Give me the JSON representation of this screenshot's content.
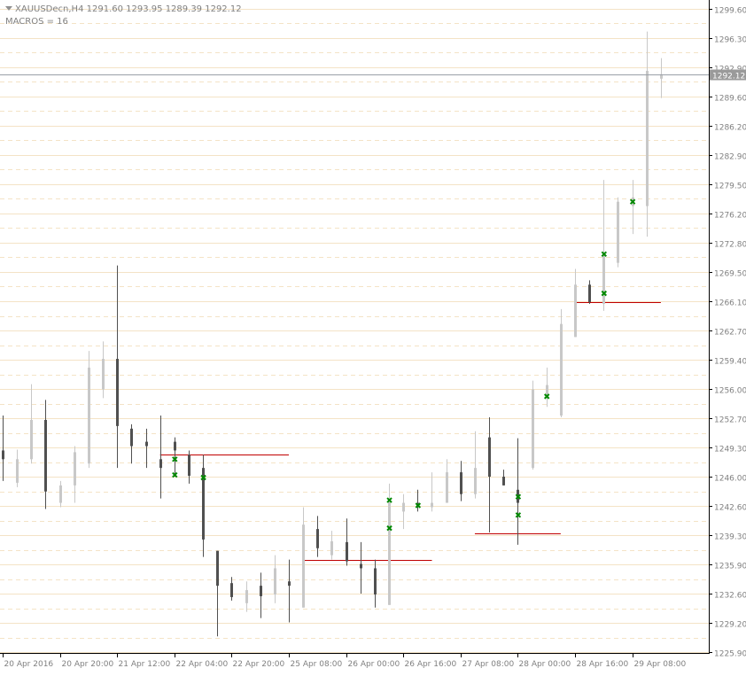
{
  "header": {
    "symbol": "XAUUSDecn,H4",
    "ohlc": "1291.60 1293.95 1289.39 1292.12",
    "indicator": "MACROS = 16"
  },
  "price_axis": {
    "labels": [
      "1299.60",
      "1296.30",
      "1292.90",
      "1289.60",
      "1286.20",
      "1282.90",
      "1279.50",
      "1276.20",
      "1272.80",
      "1269.50",
      "1266.10",
      "1262.70",
      "1259.40",
      "1256.00",
      "1252.70",
      "1249.30",
      "1246.00",
      "1242.60",
      "1239.30",
      "1235.90",
      "1232.60",
      "1229.20",
      "1225.90"
    ],
    "values": [
      1299.6,
      1296.3,
      1292.9,
      1289.6,
      1286.2,
      1282.9,
      1279.5,
      1276.2,
      1272.8,
      1269.5,
      1266.1,
      1262.7,
      1259.4,
      1256.0,
      1252.7,
      1249.3,
      1246.0,
      1242.6,
      1239.3,
      1235.9,
      1232.6,
      1229.2,
      1225.9
    ],
    "current_price_label": "1292.12",
    "current_price": 1292.12
  },
  "time_axis": {
    "labels": [
      "20 Apr 2016",
      "20 Apr 20:00",
      "21 Apr 12:00",
      "22 Apr 04:00",
      "22 Apr 20:00",
      "25 Apr 08:00",
      "26 Apr 00:00",
      "26 Apr 16:00",
      "27 Apr 08:00",
      "28 Apr 00:00",
      "28 Apr 16:00",
      "29 Apr 08:00"
    ],
    "bar_index": [
      0,
      4,
      8,
      12,
      16,
      20,
      24,
      28,
      32,
      36,
      40,
      44
    ]
  },
  "colors": {
    "up_bar": "#c8c8c8",
    "down_bar": "#505050",
    "grid": "#f4e3c6",
    "level_line": "#c00000",
    "marker": "#008800",
    "current_line": "#9aa0a8",
    "price_tag_bg": "#9a9a9a"
  },
  "chart_data": {
    "type": "ohlc",
    "timeframe": "H4",
    "bars": [
      {
        "o": 1249.0,
        "h": 1253.0,
        "l": 1245.5,
        "c": 1248.0
      },
      {
        "o": 1245.3,
        "h": 1249.1,
        "l": 1244.8,
        "c": 1248.0
      },
      {
        "o": 1248.0,
        "h": 1256.6,
        "l": 1247.5,
        "c": 1252.5
      },
      {
        "o": 1252.5,
        "h": 1254.8,
        "l": 1242.3,
        "c": 1244.3
      },
      {
        "o": 1243.0,
        "h": 1245.5,
        "l": 1242.5,
        "c": 1245.0
      },
      {
        "o": 1245.0,
        "h": 1249.5,
        "l": 1243.0,
        "c": 1248.8
      },
      {
        "o": 1247.5,
        "h": 1260.4,
        "l": 1247.0,
        "c": 1258.5
      },
      {
        "o": 1256.0,
        "h": 1261.5,
        "l": 1255.0,
        "c": 1259.5
      },
      {
        "o": 1259.5,
        "h": 1270.2,
        "l": 1247.0,
        "c": 1251.8
      },
      {
        "o": 1251.5,
        "h": 1252.0,
        "l": 1247.5,
        "c": 1249.5
      },
      {
        "o": 1250.0,
        "h": 1251.5,
        "l": 1247.0,
        "c": 1249.5
      },
      {
        "o": 1248.0,
        "h": 1253.0,
        "l": 1243.5,
        "c": 1247.0
      },
      {
        "o": 1250.0,
        "h": 1250.5,
        "l": 1246.0,
        "c": 1249.0
      },
      {
        "o": 1248.5,
        "h": 1249.0,
        "l": 1245.2,
        "c": 1246.1
      },
      {
        "o": 1247.0,
        "h": 1248.5,
        "l": 1236.8,
        "c": 1238.8
      },
      {
        "o": 1237.5,
        "h": 1237.5,
        "l": 1227.7,
        "c": 1233.5
      },
      {
        "o": 1233.8,
        "h": 1234.5,
        "l": 1231.8,
        "c": 1232.2
      },
      {
        "o": 1231.5,
        "h": 1234.0,
        "l": 1230.5,
        "c": 1233.0
      },
      {
        "o": 1233.5,
        "h": 1235.0,
        "l": 1229.8,
        "c": 1232.3
      },
      {
        "o": 1232.5,
        "h": 1237.0,
        "l": 1231.5,
        "c": 1235.5
      },
      {
        "o": 1234.0,
        "h": 1236.5,
        "l": 1229.3,
        "c": 1233.5
      },
      {
        "o": 1231.0,
        "h": 1242.5,
        "l": 1231.0,
        "c": 1240.5
      },
      {
        "o": 1240.0,
        "h": 1241.5,
        "l": 1236.8,
        "c": 1237.8
      },
      {
        "o": 1237.0,
        "h": 1239.8,
        "l": 1236.5,
        "c": 1238.6
      },
      {
        "o": 1238.5,
        "h": 1241.2,
        "l": 1235.8,
        "c": 1236.3
      },
      {
        "o": 1236.0,
        "h": 1238.5,
        "l": 1232.6,
        "c": 1235.5
      },
      {
        "o": 1235.5,
        "h": 1236.5,
        "l": 1231.0,
        "c": 1232.5
      },
      {
        "o": 1231.3,
        "h": 1245.2,
        "l": 1231.3,
        "c": 1243.5
      },
      {
        "o": 1242.0,
        "h": 1244.0,
        "l": 1240.0,
        "c": 1243.0
      },
      {
        "o": 1243.0,
        "h": 1244.5,
        "l": 1242.0,
        "c": 1242.5
      },
      {
        "o": 1242.5,
        "h": 1246.5,
        "l": 1242.0,
        "c": 1243.0
      },
      {
        "o": 1243.0,
        "h": 1248.0,
        "l": 1243.0,
        "c": 1246.5
      },
      {
        "o": 1246.5,
        "h": 1247.8,
        "l": 1243.2,
        "c": 1244.0
      },
      {
        "o": 1244.0,
        "h": 1251.2,
        "l": 1243.5,
        "c": 1247.0
      },
      {
        "o": 1250.5,
        "h": 1252.8,
        "l": 1239.6,
        "c": 1246.0
      },
      {
        "o": 1246.0,
        "h": 1246.8,
        "l": 1245.0,
        "c": 1245.0
      },
      {
        "o": 1244.5,
        "h": 1250.4,
        "l": 1238.2,
        "c": 1243.0
      },
      {
        "o": 1247.0,
        "h": 1257.0,
        "l": 1246.8,
        "c": 1256.0
      },
      {
        "o": 1255.0,
        "h": 1258.5,
        "l": 1254.0,
        "c": 1256.5
      },
      {
        "o": 1253.0,
        "h": 1265.2,
        "l": 1252.8,
        "c": 1263.5
      },
      {
        "o": 1262.0,
        "h": 1269.8,
        "l": 1262.0,
        "c": 1268.0
      },
      {
        "o": 1268.0,
        "h": 1268.5,
        "l": 1265.8,
        "c": 1266.0
      },
      {
        "o": 1265.8,
        "h": 1280.0,
        "l": 1265.0,
        "c": 1271.5
      },
      {
        "o": 1270.5,
        "h": 1278.0,
        "l": 1270.0,
        "c": 1277.5
      },
      {
        "o": 1277.0,
        "h": 1280.0,
        "l": 1273.8,
        "c": 1278.0
      },
      {
        "o": 1277.0,
        "h": 1297.0,
        "l": 1273.5,
        "c": 1292.5
      },
      {
        "o": 1291.6,
        "h": 1293.95,
        "l": 1289.39,
        "c": 1292.12
      }
    ],
    "levels": [
      {
        "price": 1248.5,
        "from_bar": 11,
        "to_bar": 20
      },
      {
        "price": 1236.5,
        "from_bar": 21,
        "to_bar": 30
      },
      {
        "price": 1239.5,
        "from_bar": 33,
        "to_bar": 39
      },
      {
        "price": 1266.0,
        "from_bar": 40,
        "to_bar": 46
      }
    ],
    "markers": [
      {
        "bar": 12,
        "price": 1248.0
      },
      {
        "bar": 12,
        "price": 1246.2
      },
      {
        "bar": 14,
        "price": 1245.9
      },
      {
        "bar": 27,
        "price": 1243.3
      },
      {
        "bar": 27,
        "price": 1240.1
      },
      {
        "bar": 29,
        "price": 1242.7
      },
      {
        "bar": 36,
        "price": 1243.7
      },
      {
        "bar": 36,
        "price": 1241.6
      },
      {
        "bar": 38,
        "price": 1255.2
      },
      {
        "bar": 42,
        "price": 1271.5
      },
      {
        "bar": 42,
        "price": 1267.0
      },
      {
        "bar": 44,
        "price": 1277.5
      }
    ],
    "current_price": 1292.12
  }
}
